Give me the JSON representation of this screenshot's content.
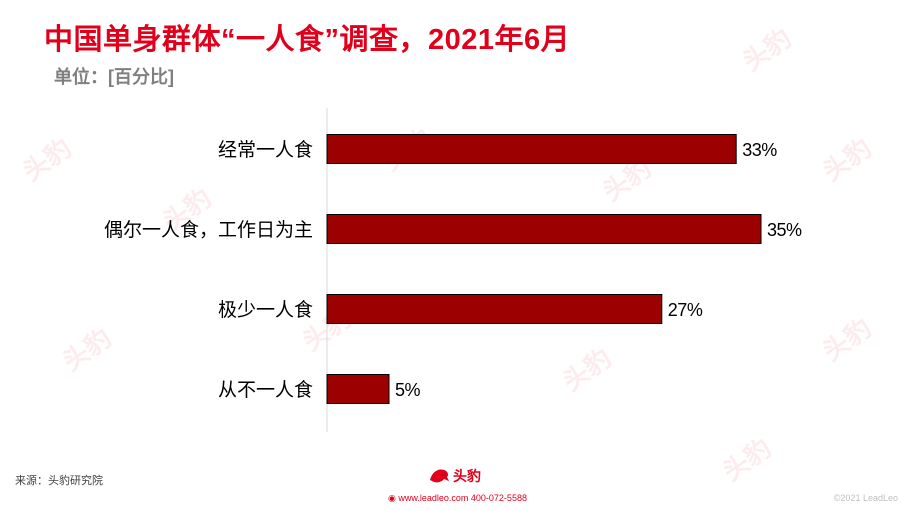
{
  "header": {
    "title": "中国单身群体“一人食”调查，2021年6月",
    "unit": "单位：[百分比]"
  },
  "chart_data": {
    "type": "bar",
    "orientation": "horizontal",
    "categories": [
      "经常一人食",
      "偶尔一人食，工作日为主",
      "极少一人食",
      "从不一人食"
    ],
    "values": [
      33,
      35,
      27,
      5
    ],
    "value_labels": [
      "33%",
      "35%",
      "27%",
      "5%"
    ],
    "title": "中国单身群体“一人食”调查，2021年6月",
    "xlabel": "",
    "ylabel": "",
    "xlim": [
      0,
      35
    ],
    "grid": false,
    "legend": "none",
    "colors": {
      "bar_fill": "#9c0000",
      "bar_stroke": "#000000",
      "axis": "#d9d9d9"
    }
  },
  "footer": {
    "source": "来源：头豹研究院",
    "logo_text": "头豹",
    "contact": "www.leadleo.com  400-072-5588",
    "copyright": "©2021 LeadLeo"
  },
  "watermark": {
    "text": "头豹"
  },
  "colors": {
    "brand": "#e0001b",
    "unit_text": "#7f7f7f"
  }
}
